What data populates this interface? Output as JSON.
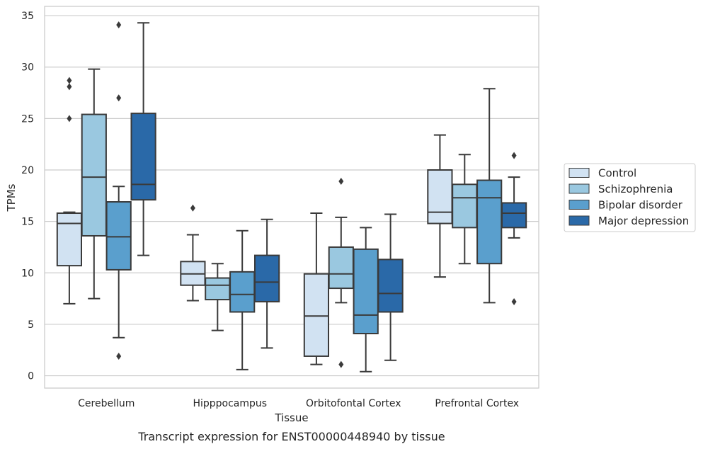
{
  "chart_data": {
    "type": "box",
    "caption": "Transcript expression for ENST00000448940 by tissue",
    "xlabel": "Tissue",
    "ylabel": "TPMs",
    "ylim": [
      -1.2,
      35.9
    ],
    "yticks": [
      0,
      5,
      10,
      15,
      20,
      25,
      30,
      35
    ],
    "grid": true,
    "legend_position": "right",
    "categories": [
      "Cerebellum",
      "Hipppocampus",
      "Orbitofontal Cortex",
      "Prefrontal Cortex"
    ],
    "series": [
      {
        "name": "Control",
        "color": "#d1e2f2",
        "boxes": [
          {
            "whisker_low": 7.0,
            "q1": 10.7,
            "median": 14.8,
            "q3": 15.8,
            "whisker_high": 15.9,
            "outliers": [
              25.0,
              28.1,
              28.7
            ]
          },
          {
            "whisker_low": 7.3,
            "q1": 8.8,
            "median": 9.9,
            "q3": 11.1,
            "whisker_high": 13.7,
            "outliers": [
              16.3
            ]
          },
          {
            "whisker_low": 1.1,
            "q1": 1.9,
            "median": 5.8,
            "q3": 9.9,
            "whisker_high": 15.8,
            "outliers": []
          },
          {
            "whisker_low": 9.6,
            "q1": 14.8,
            "median": 15.9,
            "q3": 20.0,
            "whisker_high": 23.4,
            "outliers": []
          }
        ]
      },
      {
        "name": "Schizophrenia",
        "color": "#9ac8e0",
        "boxes": [
          {
            "whisker_low": 7.5,
            "q1": 13.6,
            "median": 19.3,
            "q3": 25.4,
            "whisker_high": 29.8,
            "outliers": []
          },
          {
            "whisker_low": 4.4,
            "q1": 7.4,
            "median": 8.8,
            "q3": 9.5,
            "whisker_high": 10.9,
            "outliers": []
          },
          {
            "whisker_low": 7.1,
            "q1": 8.5,
            "median": 9.9,
            "q3": 12.5,
            "whisker_high": 15.4,
            "outliers": [
              18.9,
              1.1
            ]
          },
          {
            "whisker_low": 10.9,
            "q1": 14.4,
            "median": 17.3,
            "q3": 18.6,
            "whisker_high": 21.5,
            "outliers": []
          }
        ]
      },
      {
        "name": "Bipolar disorder",
        "color": "#5a9fcd",
        "boxes": [
          {
            "whisker_low": 3.7,
            "q1": 10.3,
            "median": 13.5,
            "q3": 16.9,
            "whisker_high": 18.4,
            "outliers": [
              27.0,
              34.1,
              1.9
            ]
          },
          {
            "whisker_low": 0.6,
            "q1": 6.2,
            "median": 7.9,
            "q3": 10.1,
            "whisker_high": 14.1,
            "outliers": []
          },
          {
            "whisker_low": 0.4,
            "q1": 4.1,
            "median": 5.9,
            "q3": 12.3,
            "whisker_high": 14.4,
            "outliers": []
          },
          {
            "whisker_low": 7.1,
            "q1": 10.9,
            "median": 17.3,
            "q3": 19.0,
            "whisker_high": 27.9,
            "outliers": []
          }
        ]
      },
      {
        "name": "Major depression",
        "color": "#2a69a8",
        "boxes": [
          {
            "whisker_low": 11.7,
            "q1": 17.1,
            "median": 18.6,
            "q3": 25.5,
            "whisker_high": 34.3,
            "outliers": []
          },
          {
            "whisker_low": 2.7,
            "q1": 7.2,
            "median": 9.1,
            "q3": 11.7,
            "whisker_high": 15.2,
            "outliers": []
          },
          {
            "whisker_low": 1.5,
            "q1": 6.2,
            "median": 8.0,
            "q3": 11.3,
            "whisker_high": 15.7,
            "outliers": []
          },
          {
            "whisker_low": 13.4,
            "q1": 14.4,
            "median": 15.8,
            "q3": 16.8,
            "whisker_high": 19.3,
            "outliers": [
              21.4,
              7.2
            ]
          }
        ]
      }
    ]
  }
}
